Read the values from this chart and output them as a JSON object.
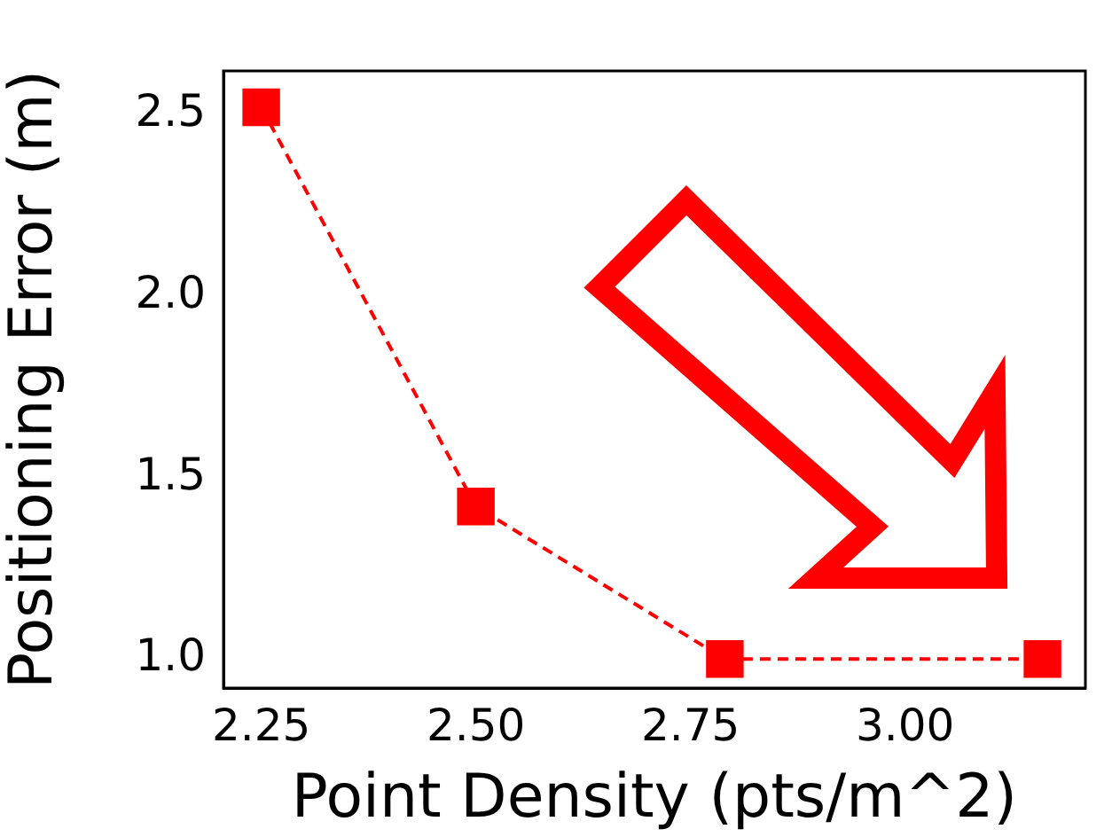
{
  "chart_data": {
    "type": "line",
    "xlabel": "Point Density (pts/m^2)",
    "ylabel": "Positioning Error (m)",
    "x": [
      2.25,
      2.5,
      2.79,
      3.16
    ],
    "series": [
      {
        "color": "#ff0000",
        "values": [
          2.52,
          1.42,
          1.0,
          1.0
        ]
      }
    ],
    "xlim": [
      2.206,
      3.21
    ],
    "ylim": [
      0.92,
      2.62
    ],
    "xticks": [
      2.25,
      {
        "value": 2.5,
        "label": "2.50"
      },
      2.75,
      {
        "value": 3,
        "label": "3.00"
      }
    ],
    "yticks": [
      {
        "value": 1,
        "label": "1.0"
      },
      1.5,
      {
        "value": 2,
        "label": "2.0"
      },
      2.5
    ],
    "grid": false,
    "legend": false,
    "marker": "square",
    "line_style": "dashed"
  }
}
